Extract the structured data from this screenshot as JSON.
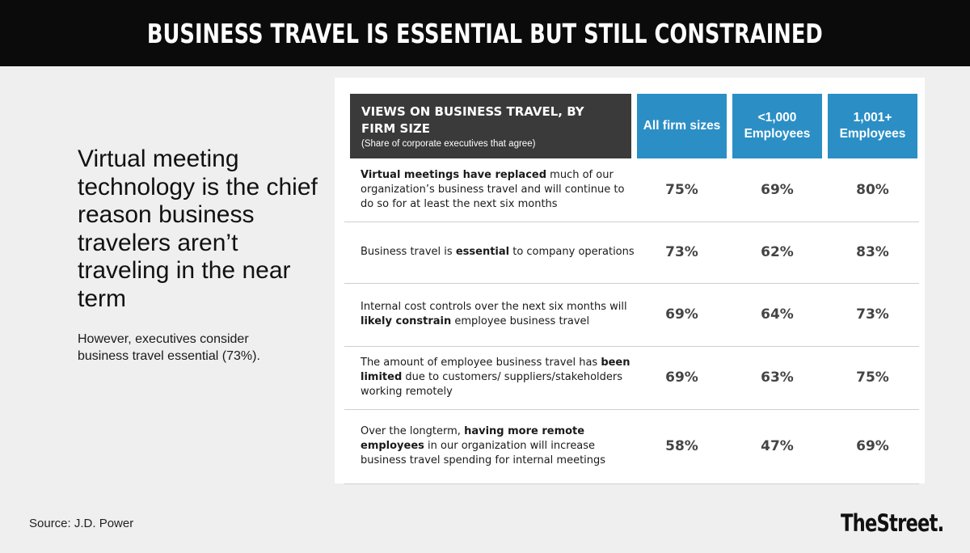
{
  "page_title": "BUSINESS TRAVEL IS ESSENTIAL BUT STILL CONSTRAINED",
  "left": {
    "headline": "Virtual meeting technology is the chief reason business travelers aren’t traveling in the near term",
    "subtext": "However, executives consider business travel essential (73%)."
  },
  "footer": {
    "source": "Source: J.D. Power",
    "brand": "TheStreet."
  },
  "chart_data": {
    "type": "table",
    "title": "VIEWS ON BUSINESS TRAVEL, BY FIRM SIZE",
    "subtitle": "(Share of corporate executives that agree)",
    "columns": [
      "All firm sizes",
      "<1,000 Employees",
      "1,001+ Employees"
    ],
    "header_color": "#2b8fc6",
    "title_cell_color": "#3a3a3a",
    "rows": [
      {
        "statement": [
          {
            "text": "Virtual meetings have replaced",
            "bold": true
          },
          {
            "text": " much of our organization’s business travel and will continue to do so for at least the next six months",
            "bold": false
          }
        ],
        "values": [
          "75%",
          "69%",
          "80%"
        ]
      },
      {
        "statement": [
          {
            "text": "Business travel is ",
            "bold": false
          },
          {
            "text": "essential",
            "bold": true
          },
          {
            "text": " to company operations",
            "bold": false
          }
        ],
        "values": [
          "73%",
          "62%",
          "83%"
        ]
      },
      {
        "statement": [
          {
            "text": "Internal cost controls over the next six months will ",
            "bold": false
          },
          {
            "text": "likely constrain",
            "bold": true
          },
          {
            "text": " employee business travel",
            "bold": false
          }
        ],
        "values": [
          "69%",
          "64%",
          "73%"
        ]
      },
      {
        "statement": [
          {
            "text": "The amount of employee business travel has ",
            "bold": false
          },
          {
            "text": "been limited",
            "bold": true
          },
          {
            "text": " due to customers/ suppliers/stakeholders working remotely",
            "bold": false
          }
        ],
        "values": [
          "69%",
          "63%",
          "75%"
        ]
      },
      {
        "statement": [
          {
            "text": "Over the longterm, ",
            "bold": false
          },
          {
            "text": "having more remote employees",
            "bold": true
          },
          {
            "text": " in our organization will increase business travel spending for internal meetings",
            "bold": false
          }
        ],
        "values": [
          "58%",
          "47%",
          "69%"
        ]
      }
    ]
  }
}
